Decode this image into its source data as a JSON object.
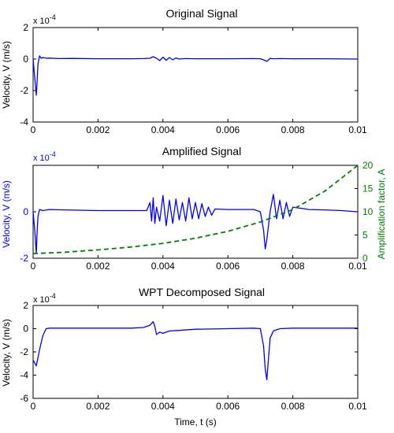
{
  "figure": {
    "background": "#ffffff",
    "axis_color": "#000000",
    "signal_color": "#0000ff",
    "factor_color": "#008000"
  },
  "chart_data": [
    {
      "type": "line",
      "title": "Original Signal",
      "xlabel": "",
      "ylabel": "Velocity, V (m/s)",
      "exponent_label": "x 10",
      "exponent_power": "-4",
      "xlim": [
        0,
        0.01
      ],
      "ylim": [
        -4,
        2
      ],
      "xticks": [
        0,
        0.002,
        0.004,
        0.006,
        0.008,
        0.01
      ],
      "xtick_labels": [
        "0",
        "0.002",
        "0.004",
        "0.006",
        "0.008",
        "0.01"
      ],
      "yticks": [
        -4,
        -2,
        0,
        2
      ],
      "ytick_labels": [
        "-4",
        "-2",
        "0",
        "2"
      ],
      "grid": false,
      "series": [
        {
          "x": [
            0,
            5e-05,
            0.0001,
            0.00012,
            0.00015,
            0.0002,
            0.00025,
            0.0003,
            0.0004,
            0.0005,
            0.0008,
            0.0012,
            0.002,
            0.003,
            0.0034,
            0.0036,
            0.0037,
            0.0038,
            0.0039,
            0.004,
            0.0041,
            0.0042,
            0.0043,
            0.0044,
            0.0045,
            0.0047,
            0.005,
            0.006,
            0.0068,
            0.007,
            0.0071,
            0.0072,
            0.0073,
            0.0074,
            0.0076,
            0.008,
            0.009,
            0.01
          ],
          "y": [
            0,
            -1.2,
            -2.3,
            -1.6,
            -0.3,
            0.2,
            0.05,
            0.1,
            0.05,
            0.06,
            0.03,
            0.04,
            0.02,
            0.02,
            0.03,
            0.05,
            0.15,
            0.05,
            -0.1,
            0.12,
            -0.08,
            0.1,
            -0.05,
            0.07,
            0.0,
            0.03,
            0.02,
            0.02,
            0.03,
            0.02,
            -0.05,
            -0.15,
            0.04,
            0.02,
            0.03,
            0.02,
            0.02,
            0.0
          ]
        }
      ]
    },
    {
      "type": "line",
      "title": "Amplified Signal",
      "xlabel": "",
      "ylabel": "Velocity, V (m/s)",
      "ylabel_right": "Amplification factor, A",
      "exponent_label": "x 10",
      "exponent_power": "-4",
      "xlim": [
        0,
        0.01
      ],
      "ylim": [
        -2,
        2
      ],
      "ylim_right": [
        0,
        20
      ],
      "xticks": [
        0,
        0.002,
        0.004,
        0.006,
        0.008,
        0.01
      ],
      "xtick_labels": [
        "0",
        "0.002",
        "0.004",
        "0.006",
        "0.008",
        "0.01"
      ],
      "yticks": [
        -2,
        0
      ],
      "ytick_labels": [
        "-2",
        "0"
      ],
      "yticks_right": [
        0,
        5,
        10,
        15,
        20
      ],
      "ytick_labels_right": [
        "0",
        "5",
        "10",
        "15",
        "20"
      ],
      "grid": false,
      "series": [
        {
          "style": "solid",
          "x": [
            0,
            5e-05,
            0.0001,
            0.00012,
            0.00015,
            0.0002,
            0.0003,
            0.0005,
            0.001,
            0.002,
            0.003,
            0.0035,
            0.0036,
            0.00365,
            0.0037,
            0.00375,
            0.0038,
            0.0039,
            0.004,
            0.0041,
            0.0042,
            0.0043,
            0.0044,
            0.0045,
            0.0046,
            0.0047,
            0.0048,
            0.0049,
            0.005,
            0.0051,
            0.0052,
            0.0053,
            0.0054,
            0.0055,
            0.0056,
            0.006,
            0.0065,
            0.0068,
            0.007,
            0.0071,
            0.00715,
            0.0072,
            0.0073,
            0.0074,
            0.0075,
            0.0076,
            0.0077,
            0.0078,
            0.0079,
            0.008,
            0.0085,
            0.009,
            0.0095,
            0.01
          ],
          "y": [
            0,
            -0.8,
            -1.8,
            -1.0,
            -0.2,
            0.1,
            0.05,
            0.1,
            0.08,
            0.05,
            0.05,
            0.05,
            0.4,
            -0.4,
            0.6,
            -0.5,
            0.2,
            -0.4,
            0.7,
            -0.6,
            0.5,
            -0.5,
            0.55,
            -0.35,
            0.4,
            -0.4,
            0.6,
            -0.3,
            0.4,
            -0.3,
            0.35,
            -0.2,
            0.2,
            -0.15,
            0.12,
            0.1,
            0.1,
            0.1,
            0.0,
            -0.8,
            -1.6,
            -1.2,
            0.0,
            0.75,
            -0.3,
            0.5,
            -0.3,
            0.4,
            -0.2,
            0.2,
            0.1,
            0.08,
            0.05,
            0.0
          ]
        },
        {
          "style": "dashed",
          "axis": "right",
          "x": [
            0,
            0.001,
            0.002,
            0.003,
            0.004,
            0.005,
            0.006,
            0.007,
            0.008,
            0.009,
            0.01
          ],
          "y": [
            1.0,
            1.3,
            1.8,
            2.4,
            3.2,
            4.3,
            5.8,
            7.8,
            10.5,
            14.5,
            20.0
          ]
        }
      ]
    },
    {
      "type": "line",
      "title": "WPT Decomposed Signal",
      "xlabel": "Time, t (s)",
      "ylabel": "Velocity, V (m/s)",
      "exponent_label": "x 10",
      "exponent_power": "-4",
      "xlim": [
        0,
        0.01
      ],
      "ylim": [
        -6,
        2
      ],
      "xticks": [
        0,
        0.002,
        0.004,
        0.006,
        0.008,
        0.01
      ],
      "xtick_labels": [
        "0",
        "0.002",
        "0.004",
        "0.006",
        "0.008",
        "0.01"
      ],
      "yticks": [
        -6,
        -4,
        -2,
        0,
        2
      ],
      "ytick_labels": [
        "-6",
        "-4",
        "-2",
        "0",
        "2"
      ],
      "grid": false,
      "series": [
        {
          "x": [
            0,
            0.0001,
            0.0002,
            0.0003,
            0.0004,
            0.0005,
            0.001,
            0.002,
            0.003,
            0.0034,
            0.0036,
            0.0037,
            0.00375,
            0.0038,
            0.0039,
            0.004,
            0.0042,
            0.0045,
            0.005,
            0.006,
            0.0068,
            0.007,
            0.0071,
            0.00715,
            0.0072,
            0.0073,
            0.0074,
            0.0076,
            0.008,
            0.009,
            0.01
          ],
          "y": [
            -2.7,
            -3.2,
            -1.8,
            -0.6,
            0.0,
            0.05,
            0.05,
            0.05,
            0.05,
            0.1,
            0.3,
            0.6,
            0.2,
            -0.5,
            -0.3,
            -0.4,
            -0.2,
            -0.15,
            -0.05,
            0.0,
            0.05,
            0.0,
            -1.5,
            -3.5,
            -4.4,
            -0.8,
            -0.2,
            0.0,
            0.05,
            0.05,
            0.05
          ]
        }
      ]
    }
  ]
}
